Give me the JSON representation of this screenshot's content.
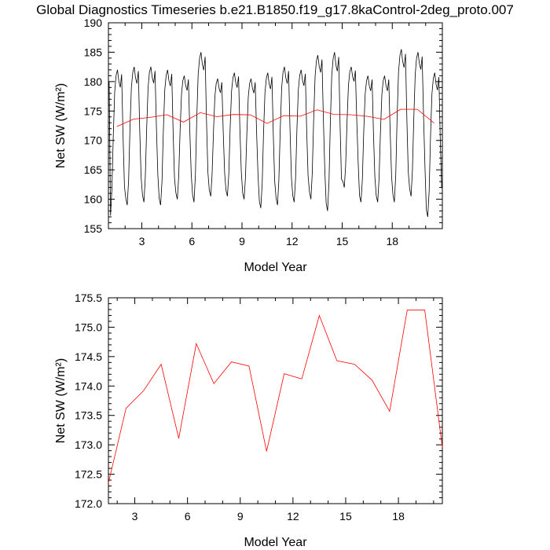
{
  "title": "Global Diagnostics Timeseries b.e21.B1850.f19_g17.8kaControl-2deg_proto.007",
  "chart_data": [
    {
      "type": "line",
      "xlabel": "Model Year",
      "ylabel": "Net SW (W/m²)",
      "xlim": [
        1,
        21
      ],
      "ylim": [
        155,
        190
      ],
      "xticks": [
        "3",
        "6",
        "9",
        "12",
        "15",
        "18"
      ],
      "yticks": [
        "155",
        "160",
        "165",
        "170",
        "175",
        "180",
        "185",
        "190"
      ],
      "series": [
        {
          "color": "#000000",
          "monthly_peaks": [
            182.0,
            182.5,
            182.5,
            182.0,
            181.0,
            185.0,
            180.5,
            181.5,
            180.5,
            181.5,
            182.5,
            182.0,
            184.5,
            185.0,
            182.5,
            181.0,
            181.0,
            185.5,
            185.0,
            181.5
          ],
          "monthly_troughs": [
            157.2,
            159.0,
            159.5,
            159.0,
            160.0,
            159.5,
            160.5,
            160.5,
            160.0,
            158.5,
            159.0,
            159.5,
            160.0,
            158.0,
            162.0,
            159.5,
            159.5,
            159.5,
            160.5,
            157.0
          ]
        },
        {
          "color": "#ff0000",
          "x": [
            1.5,
            2.5,
            3.5,
            4.5,
            5.5,
            6.5,
            7.5,
            8.5,
            9.5,
            10.5,
            11.5,
            12.5,
            13.5,
            14.5,
            15.5,
            16.5,
            17.5,
            18.5,
            19.5,
            20.5
          ],
          "y": [
            172.35,
            173.62,
            173.92,
            174.37,
            173.11,
            174.72,
            174.04,
            174.41,
            174.34,
            172.89,
            174.21,
            174.12,
            175.2,
            174.43,
            174.37,
            174.1,
            173.57,
            175.29,
            175.29,
            172.95
          ]
        }
      ]
    },
    {
      "type": "line",
      "xlabel": "Model Year",
      "ylabel": "Net SW (W/m²)",
      "xlim": [
        1.5,
        20.5
      ],
      "ylim": [
        172.0,
        175.5
      ],
      "xticks": [
        "3",
        "6",
        "9",
        "12",
        "15",
        "18"
      ],
      "yticks": [
        "172.0",
        "172.5",
        "173.0",
        "173.5",
        "174.0",
        "174.5",
        "175.0",
        "175.5"
      ],
      "series": [
        {
          "color": "#ff0000",
          "x": [
            1.5,
            2.5,
            3.5,
            4.5,
            5.5,
            6.5,
            7.5,
            8.5,
            9.5,
            10.5,
            11.5,
            12.5,
            13.5,
            14.5,
            15.5,
            16.5,
            17.5,
            18.5,
            19.5,
            20.5
          ],
          "y": [
            172.35,
            173.62,
            173.92,
            174.37,
            173.11,
            174.72,
            174.04,
            174.41,
            174.34,
            172.89,
            174.21,
            174.12,
            175.2,
            174.43,
            174.37,
            174.1,
            173.57,
            175.29,
            175.29,
            172.95
          ]
        }
      ]
    }
  ]
}
